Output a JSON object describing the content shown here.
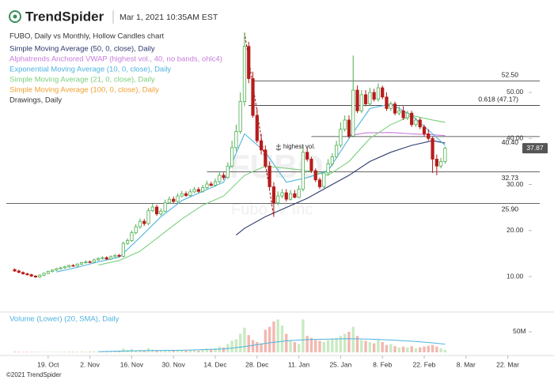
{
  "header": {
    "brand": "TrendSpider",
    "timestamp": "Mar 1, 2021 10:35AM EST"
  },
  "footer": "©2021 TrendSpider",
  "chart_data": {
    "type": "candlestick",
    "subtitle": "FUBO, Daily vs Monthly, Hollow Candles chart",
    "watermark": {
      "symbol": "FUBO",
      "name": "FuboTV Inc"
    },
    "annotation": "highest vol.",
    "xlim": [
      -2,
      123
    ],
    "xticks": [
      {
        "value": 8,
        "label": "19. Oct"
      },
      {
        "value": 18,
        "label": "2. Nov"
      },
      {
        "value": 28,
        "label": "16. Nov"
      },
      {
        "value": 38,
        "label": "30. Nov"
      },
      {
        "value": 48,
        "label": "14. Dec"
      },
      {
        "value": 58,
        "label": "28. Dec"
      },
      {
        "value": 68,
        "label": "11. Jan"
      },
      {
        "value": 78,
        "label": "25. Jan"
      },
      {
        "value": 88,
        "label": "8. Feb"
      },
      {
        "value": 98,
        "label": "22. Feb"
      },
      {
        "value": 108,
        "label": "8. Mar"
      },
      {
        "value": 118,
        "label": "22. Mar"
      }
    ],
    "ylim": [
      2.8,
      68.7
    ],
    "yticks": [
      {
        "value": 10,
        "label": "10.00"
      },
      {
        "value": 20,
        "label": "20.00"
      },
      {
        "value": 30,
        "label": "30.00"
      },
      {
        "value": 40,
        "label": "40.00"
      },
      {
        "value": 50,
        "label": "50.00"
      }
    ],
    "up_color": "#4caf50",
    "down_color": "#b71c1c",
    "last_price": 37.87,
    "candles": {
      "open": [
        11.5,
        11.2,
        10.9,
        10.6,
        10.4,
        10.1,
        9.9,
        10.3,
        10.7,
        11.1,
        11.4,
        11.7,
        11.9,
        12.1,
        12.4,
        12.3,
        12.7,
        13.0,
        13.2,
        13.1,
        13.6,
        13.9,
        14.1,
        13.8,
        14.3,
        14.6,
        14.4,
        17.2,
        17.8,
        19.5,
        20.8,
        22.0,
        21.5,
        24.3,
        25.1,
        23.6,
        24.2,
        26.0,
        26.8,
        26.3,
        27.5,
        28.0,
        27.6,
        28.4,
        28.9,
        28.5,
        29.3,
        30.1,
        29.8,
        30.6,
        32.0,
        31.5,
        34.0,
        38.0,
        41.5,
        48.0,
        60.0,
        53.0,
        45.0,
        39.5,
        37.5,
        34.0,
        29.5,
        26.0,
        27.5,
        28.2,
        26.8,
        28.0,
        27.2,
        29.0,
        37.0,
        35.5,
        33.0,
        31.0,
        29.5,
        32.5,
        34.5,
        36.0,
        38.5,
        42.0,
        44.0,
        40.5,
        50.5,
        46.0,
        49.5,
        47.5,
        50.0,
        48.5,
        51.0,
        49.0,
        46.5,
        47.5,
        45.5,
        46.0,
        44.5,
        45.5,
        43.0,
        44.0,
        42.5,
        41.0,
        40.0,
        35.5,
        34.0,
        35.0
      ],
      "high": [
        11.8,
        11.5,
        11.1,
        10.8,
        10.6,
        10.3,
        10.5,
        10.9,
        11.3,
        11.6,
        11.9,
        12.1,
        12.3,
        12.6,
        12.7,
        12.9,
        13.2,
        13.5,
        13.5,
        13.9,
        14.2,
        14.4,
        14.4,
        14.6,
        14.9,
        14.9,
        17.6,
        18.3,
        20.0,
        21.4,
        22.6,
        22.5,
        24.9,
        25.8,
        25.6,
        24.8,
        26.7,
        27.4,
        27.4,
        28.1,
        28.6,
        28.5,
        29.0,
        29.5,
        29.4,
        29.9,
        30.8,
        30.6,
        31.3,
        32.8,
        32.6,
        34.8,
        39.5,
        43.0,
        50.0,
        63.0,
        61.0,
        54.5,
        46.5,
        41.0,
        38.5,
        35.0,
        30.5,
        28.5,
        29.0,
        29.0,
        28.8,
        28.8,
        29.8,
        38.5,
        38.0,
        36.0,
        33.5,
        31.5,
        33.0,
        35.5,
        36.8,
        39.5,
        43.5,
        45.0,
        45.0,
        58.0,
        51.5,
        50.5,
        50.5,
        51.0,
        50.8,
        52.0,
        51.5,
        50.0,
        48.0,
        48.0,
        47.0,
        47.0,
        46.0,
        46.0,
        44.5,
        44.5,
        43.0,
        42.0,
        40.5,
        36.5,
        35.8,
        38.2
      ],
      "low": [
        11.0,
        10.7,
        10.4,
        10.2,
        9.9,
        9.7,
        9.7,
        10.1,
        10.5,
        10.9,
        11.2,
        11.5,
        11.7,
        11.9,
        12.1,
        12.1,
        12.5,
        12.8,
        12.9,
        12.9,
        13.4,
        13.7,
        13.6,
        13.6,
        14.1,
        14.2,
        14.2,
        16.9,
        17.5,
        19.2,
        20.4,
        21.0,
        21.2,
        24.0,
        23.2,
        23.2,
        24.0,
        25.8,
        26.0,
        26.0,
        27.2,
        27.3,
        27.3,
        28.1,
        28.2,
        28.2,
        29.0,
        29.6,
        29.5,
        30.3,
        31.0,
        31.2,
        33.6,
        37.2,
        41.0,
        47.0,
        52.0,
        44.5,
        39.0,
        36.5,
        33.5,
        29.0,
        23.0,
        25.5,
        27.0,
        26.3,
        26.5,
        27.0,
        27.0,
        28.5,
        35.0,
        32.5,
        30.5,
        29.0,
        29.2,
        32.0,
        34.0,
        35.7,
        38.0,
        41.5,
        40.0,
        40.5,
        45.5,
        45.5,
        47.0,
        47.0,
        48.0,
        48.0,
        48.5,
        46.0,
        46.0,
        45.0,
        45.0,
        44.0,
        44.0,
        42.5,
        42.5,
        42.0,
        40.5,
        39.5,
        32.5,
        32.0,
        33.5,
        34.5
      ],
      "close": [
        11.2,
        10.9,
        10.6,
        10.4,
        10.1,
        9.9,
        10.3,
        10.7,
        11.1,
        11.4,
        11.7,
        11.9,
        12.1,
        12.4,
        12.3,
        12.7,
        13.0,
        13.2,
        13.1,
        13.6,
        13.9,
        14.1,
        13.8,
        14.3,
        14.6,
        14.4,
        17.2,
        17.8,
        19.5,
        20.8,
        22.0,
        21.5,
        24.3,
        25.1,
        23.6,
        24.2,
        26.0,
        26.8,
        26.3,
        27.5,
        28.0,
        27.6,
        28.4,
        28.9,
        28.5,
        29.3,
        30.1,
        29.8,
        30.6,
        32.0,
        31.5,
        34.0,
        38.0,
        41.5,
        48.0,
        60.0,
        53.0,
        45.0,
        39.5,
        37.5,
        34.0,
        29.5,
        26.0,
        27.5,
        28.2,
        26.8,
        28.0,
        27.2,
        29.0,
        37.0,
        35.5,
        33.0,
        31.0,
        29.5,
        32.5,
        34.5,
        36.0,
        38.5,
        42.0,
        44.0,
        40.5,
        50.5,
        46.0,
        49.5,
        47.5,
        50.0,
        48.5,
        51.0,
        49.0,
        46.5,
        47.5,
        45.5,
        46.0,
        44.5,
        45.5,
        43.0,
        44.0,
        42.5,
        41.0,
        40.0,
        35.5,
        34.0,
        35.0,
        37.87
      ]
    },
    "series": [
      {
        "name": "Simple Moving Average (50, 0, close), Daily",
        "color": "#2e3a6e",
        "x": [
          53,
          55,
          60,
          65,
          70,
          75,
          80,
          85,
          90,
          95,
          100,
          103
        ],
        "values": [
          19.0,
          20.5,
          23.0,
          25.0,
          27.0,
          29.5,
          32.0,
          35.0,
          37.0,
          38.5,
          39.5,
          39.0
        ]
      },
      {
        "name": "Alphatrends Anchored VWAP (highest vol., 40, no bands, ohlc4)",
        "color": "#c77ddb",
        "x": [
          80,
          84,
          90,
          95,
          100,
          103
        ],
        "values": [
          40.6,
          41.2,
          41.3,
          41.0,
          40.8,
          40.6
        ]
      },
      {
        "name": "Exponential Moving Average (10, 0, close), Daily",
        "color": "#4fb3e0",
        "x": [
          10,
          15,
          20,
          25,
          30,
          35,
          40,
          45,
          50,
          55,
          60,
          65,
          70,
          75,
          80,
          85,
          90,
          95,
          100,
          103
        ],
        "values": [
          11.0,
          12.0,
          13.2,
          14.2,
          18.5,
          23.0,
          26.5,
          28.5,
          30.5,
          41.0,
          37.0,
          30.5,
          31.5,
          33.0,
          40.0,
          46.5,
          47.5,
          45.0,
          41.0,
          38.5
        ]
      },
      {
        "name": "Simple Moving Average (21, 0, close), Daily",
        "color": "#7ccf7c",
        "x": [
          20,
          25,
          30,
          35,
          40,
          45,
          50,
          55,
          60,
          65,
          70,
          75,
          80,
          85,
          90,
          95,
          100,
          103
        ],
        "values": [
          12.5,
          13.5,
          15.5,
          19.0,
          22.5,
          25.5,
          27.5,
          32.0,
          34.0,
          33.5,
          33.0,
          32.0,
          35.0,
          40.0,
          43.0,
          45.0,
          44.0,
          43.5
        ]
      },
      {
        "name": "Simple Moving Average (100, 0, close), Daily",
        "color": "#f0a030"
      }
    ],
    "drawings": {
      "name": "Drawings, Daily",
      "color": "#333333",
      "levels": [
        {
          "value": 52.5,
          "label": "52.50",
          "start": 57
        },
        {
          "value": 47.17,
          "label": "0.618 (47.17)",
          "start": 56
        },
        {
          "value": 40.4,
          "label": "40.40",
          "start": 71
        },
        {
          "value": 32.73,
          "label": "32.73",
          "start": 46
        },
        {
          "value": 25.9,
          "label": "25.90",
          "start": -2
        }
      ]
    },
    "volume": {
      "name": "Volume (Lower) (20, SMA), Daily",
      "color": "#4fb3e0",
      "ylim": [
        0,
        98000000
      ],
      "yticks": [
        {
          "value": 50000000,
          "label": "50M"
        }
      ],
      "values": [
        1500000.0,
        1200000.0,
        1000000.0,
        1300000.0,
        1100000.0,
        1000000.0,
        1400000.0,
        1200000.0,
        1100000.0,
        1300000.0,
        1500000.0,
        1200000.0,
        1400000.0,
        1800000.0,
        1300000.0,
        1600000.0,
        2000000.0,
        1700000.0,
        1500000.0,
        2200000.0,
        1800000.0,
        2000000.0,
        1600000.0,
        2400000.0,
        2200000.0,
        1900000.0,
        9000000.0,
        6000000.0,
        8000000.0,
        5000000.0,
        6000000.0,
        4000000.0,
        10000000.0,
        7000000.0,
        5000000.0,
        4000000.0,
        6000000.0,
        5000000.0,
        4000000.0,
        6000000.0,
        5000000.0,
        4000000.0,
        6000000.0,
        5000000.0,
        4000000.0,
        7000000.0,
        9000000.0,
        8000000.0,
        10000000.0,
        14000000.0,
        12000000.0,
        20000000.0,
        28000000.0,
        32000000.0,
        45000000.0,
        60000000.0,
        42000000.0,
        30000000.0,
        25000000.0,
        22000000.0,
        55000000.0,
        62000000.0,
        75000000.0,
        80000000.0,
        65000000.0,
        45000000.0,
        30000000.0,
        25000000.0,
        20000000.0,
        80000000.0,
        40000000.0,
        35000000.0,
        30000000.0,
        28000000.0,
        25000000.0,
        30000000.0,
        32000000.0,
        35000000.0,
        40000000.0,
        45000000.0,
        50000000.0,
        62000000.0,
        40000000.0,
        30000000.0,
        28000000.0,
        25000000.0,
        22000000.0,
        30000000.0,
        25000000.0,
        18000000.0,
        20000000.0,
        15000000.0,
        12000000.0,
        14000000.0,
        12000000.0,
        15000000.0,
        10000000.0,
        12000000.0,
        14000000.0,
        16000000.0,
        18000000.0,
        14000000.0,
        10000000.0,
        6000000.0
      ],
      "sma_x": [
        20,
        30,
        40,
        50,
        55,
        60,
        65,
        70,
        75,
        80,
        85,
        90,
        95,
        100,
        103
      ],
      "sma": [
        1800000.0,
        4000000.0,
        5000000.0,
        8000000.0,
        14000000.0,
        22000000.0,
        28000000.0,
        31000000.0,
        32000000.0,
        33000000.0,
        32000000.0,
        30000000.0,
        27000000.0,
        23000000.0,
        20000000.0
      ]
    }
  }
}
